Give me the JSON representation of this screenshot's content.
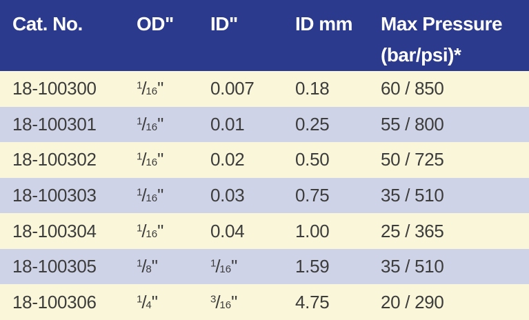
{
  "colors": {
    "header_bg": "#2B3A8C",
    "header_text": "#FFFFFF",
    "row_cream": "#F9F6DA",
    "row_lavender": "#CFD3E8",
    "cell_text": "#3C3C3B"
  },
  "shared": {
    "slash": "/",
    "inch_mark": "\""
  },
  "table": {
    "columns": [
      {
        "label": "Cat. No."
      },
      {
        "label": "OD\""
      },
      {
        "label": "ID\""
      },
      {
        "label": "ID mm"
      },
      {
        "label": "Max Pressure",
        "label_line2": "(bar/psi)*"
      }
    ],
    "rows": [
      {
        "cat_no": "18-100300",
        "od_num": "1",
        "od_den": "16",
        "id_in": "0.007",
        "id_mm": "0.18",
        "max_pressure": "60 / 850"
      },
      {
        "cat_no": "18-100301",
        "od_num": "1",
        "od_den": "16",
        "id_in": "0.01",
        "id_mm": "0.25",
        "max_pressure": "55 / 800"
      },
      {
        "cat_no": "18-100302",
        "od_num": "1",
        "od_den": "16",
        "id_in": "0.02",
        "id_mm": "0.50",
        "max_pressure": "50 / 725"
      },
      {
        "cat_no": "18-100303",
        "od_num": "1",
        "od_den": "16",
        "id_in": "0.03",
        "id_mm": "0.75",
        "max_pressure": "35 / 510"
      },
      {
        "cat_no": "18-100304",
        "od_num": "1",
        "od_den": "16",
        "id_in": "0.04",
        "id_mm": "1.00",
        "max_pressure": "25 / 365"
      },
      {
        "cat_no": "18-100305",
        "od_num": "1",
        "od_den": "8",
        "id_num": "1",
        "id_den": "16",
        "id_mm": "1.59",
        "max_pressure": "35 / 510"
      },
      {
        "cat_no": "18-100306",
        "od_num": "1",
        "od_den": "4",
        "id_num": "3",
        "id_den": "16",
        "id_mm": "4.75",
        "max_pressure": "20 / 290"
      }
    ]
  }
}
